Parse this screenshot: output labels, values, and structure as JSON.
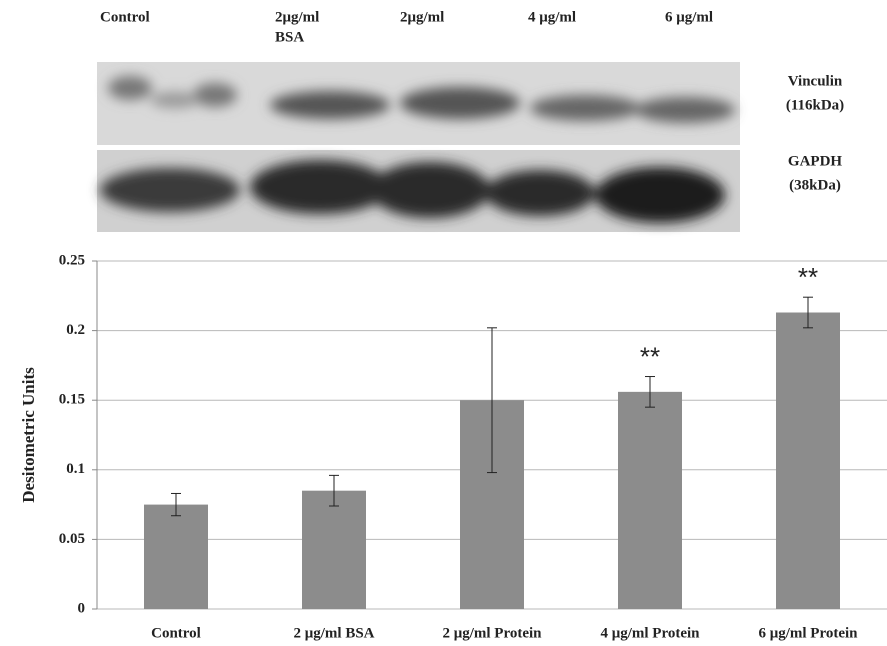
{
  "blot": {
    "lanes": [
      [
        "Control"
      ],
      [
        "2μg/ml",
        "BSA"
      ],
      [
        "2μg/ml"
      ],
      [
        "4 μg/ml"
      ],
      [
        "6 μg/ml"
      ]
    ],
    "markers": [
      [
        "Vinculin",
        "(116kDa)"
      ],
      [
        "GAPDH",
        "(38kDa)"
      ]
    ]
  },
  "chart_data": {
    "type": "bar",
    "y_label": "Desitometric Units",
    "categories": [
      "Control",
      "2 μg/ml BSA",
      "2 μg/ml Protein",
      "4 μg/ml Protein",
      "6 μg/ml Protein"
    ],
    "values": [
      0.075,
      0.085,
      0.15,
      0.156,
      0.213
    ],
    "errors": [
      0.008,
      0.011,
      0.052,
      0.011,
      0.011
    ],
    "significance": [
      null,
      null,
      null,
      "**",
      "**"
    ],
    "color": "#8c8c8c",
    "ylim": [
      0,
      0.25
    ],
    "yticks": [
      0,
      0.05,
      0.1,
      0.15,
      0.2,
      0.25
    ],
    "grid": true
  }
}
